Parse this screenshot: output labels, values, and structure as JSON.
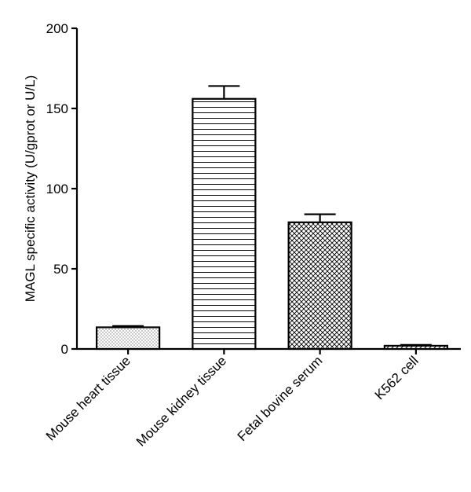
{
  "chart_data": {
    "type": "bar",
    "title": "",
    "xlabel": "",
    "ylabel": "MAGL specific activity (U/gprot or U/L)",
    "ylim": [
      0,
      200
    ],
    "yticks": [
      0,
      50,
      100,
      150,
      200
    ],
    "grid": false,
    "categories": [
      "Mouse heart tissue",
      "Mouse kidney tissue",
      "Fetal bovine serum",
      "K562 cell"
    ],
    "values": [
      13.5,
      156,
      79,
      2
    ],
    "errors": [
      0.8,
      8,
      5,
      0.5
    ],
    "patterns": [
      "dots",
      "horizontal-lines",
      "crosshatch",
      "diagonal-lines"
    ]
  }
}
